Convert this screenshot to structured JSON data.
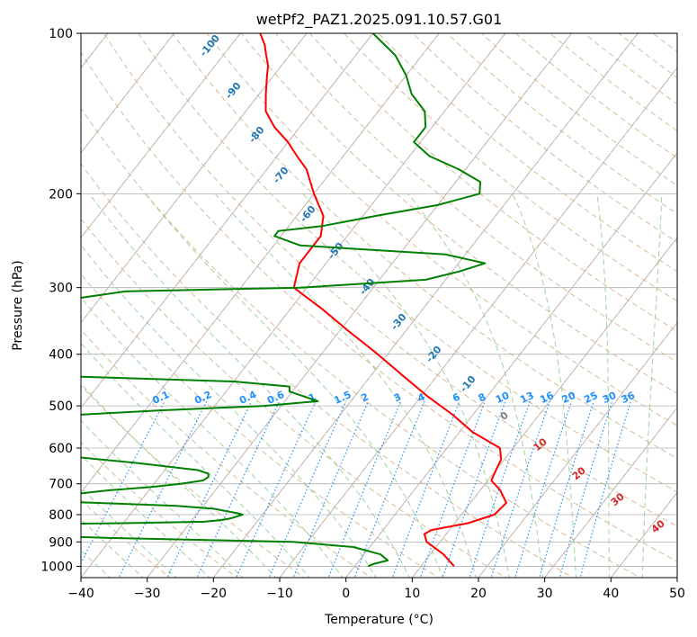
{
  "chart_data": {
    "type": "line",
    "title": "wetPf2_PAZ1.2025.091.10.57.G01",
    "xlabel": "Temperature (°C)",
    "ylabel": "Pressure (hPa)",
    "xlim": [
      -40,
      50
    ],
    "ylim": [
      1050,
      100
    ],
    "y_scale": "log",
    "skew": "skew-T",
    "grid": true,
    "x_ticks": [
      -40,
      -30,
      -20,
      -10,
      0,
      10,
      20,
      30,
      40,
      50
    ],
    "x_tick_labels": [
      "−40",
      "−30",
      "−20",
      "−10",
      "0",
      "10",
      "20",
      "30",
      "40",
      "50"
    ],
    "y_ticks": [
      100,
      200,
      300,
      400,
      500,
      600,
      700,
      800,
      900,
      1000
    ],
    "y_tick_labels": [
      "100",
      "200",
      "300",
      "400",
      "500",
      "600",
      "700",
      "800",
      "900",
      "1000"
    ],
    "series": [
      {
        "color": "#ff0000",
        "pressure": [
          1000,
          950,
          900,
          870,
          855,
          848,
          830,
          800,
          760,
          720,
          690,
          660,
          630,
          600,
          560,
          520,
          480,
          440,
          400,
          360,
          330,
          300,
          270,
          240,
          220,
          200,
          180,
          170,
          160,
          150,
          140,
          130,
          120,
          115,
          110,
          105,
          100
        ],
        "temperature": [
          15,
          12,
          8,
          6.7,
          7.3,
          8.6,
          12,
          15,
          15.4,
          13,
          10.5,
          10,
          9.5,
          8,
          2,
          -3,
          -9,
          -15,
          -21.5,
          -29,
          -35,
          -42,
          -44,
          -44,
          -46,
          -50,
          -54,
          -57,
          -60,
          -63.8,
          -67,
          -69,
          -71,
          -72,
          -73.5,
          -75,
          -77
        ]
      },
      {
        "color": "#008000",
        "pressure": [
          1000,
          990,
          975,
          950,
          920,
          900,
          885,
          870,
          860,
          850,
          845,
          840,
          835,
          830,
          825,
          820,
          815,
          810,
          805,
          800,
          795,
          780,
          770,
          760,
          750,
          740,
          730,
          720,
          710,
          700,
          690,
          680,
          670,
          660,
          640,
          600,
          570,
          555,
          545,
          530,
          510,
          500,
          490,
          470,
          460,
          450,
          440,
          420,
          400,
          380,
          360,
          330,
          315,
          305,
          300,
          290,
          280,
          270,
          260,
          250,
          240,
          235,
          230,
          220,
          210,
          200,
          190,
          180,
          170,
          160,
          150,
          140,
          130,
          120,
          110,
          100
        ],
        "temperature": [
          2,
          2.5,
          4.3,
          2.5,
          -2.5,
          -12.2,
          -40,
          -58,
          -74,
          -73,
          -70,
          -65,
          -59,
          -40,
          -28,
          -26,
          -24.7,
          -24,
          -23.5,
          -23,
          -24,
          -28,
          -34,
          -47,
          -60,
          -58,
          -50,
          -46,
          -40,
          -36,
          -33,
          -32.6,
          -33,
          -35,
          -45,
          -70,
          -90,
          -105,
          -100,
          -72,
          -48,
          -32.5,
          -25,
          -30.4,
          -31,
          -40,
          -66,
          -93,
          -100,
          -90,
          -78,
          -75,
          -74,
          -67,
          -41,
          -23,
          -19,
          -16,
          -23,
          -46,
          -51,
          -51,
          -45,
          -38,
          -30,
          -25,
          -26.3,
          -31,
          -37,
          -41,
          -41,
          -43,
          -47,
          -50,
          -54,
          -60
        ]
      }
    ],
    "dry_adiabat_labels": [
      "-100",
      "-90",
      "-80",
      "-70",
      "-60",
      "-50",
      "-40",
      "-30",
      "-20",
      "-10"
    ],
    "mixing_ratio_labels": [
      "0.1",
      "0.2",
      "0.4",
      "0.6",
      "1",
      "1.5",
      "2",
      "3",
      "4",
      "6",
      "8",
      "10",
      "13",
      "16",
      "20",
      "25",
      "30",
      "36"
    ],
    "moist_adiabat_labels": [
      "0",
      "10",
      "20",
      "30",
      "40"
    ],
    "colors": {
      "isotherm": "#ffa07a",
      "dry_adiabat_label": "#1f77b4",
      "mixing_ratio": "#1e90ff",
      "moist_adiabat_label": "#d62728",
      "moist_adiabat_line": "#9bd49b",
      "grid": "#b0b0b0"
    }
  }
}
